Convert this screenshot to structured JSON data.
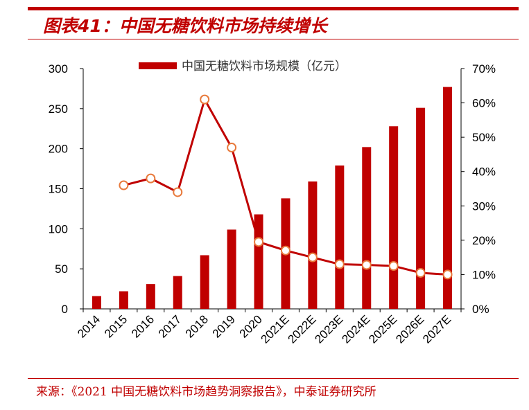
{
  "header": {
    "title": "图表41：中国无糖饮料市场持续增长"
  },
  "footer": {
    "source": "来源：《2021 中国无糖饮料市场趋势洞察报告》，中泰证券研究所"
  },
  "colors": {
    "accent": "#c00000",
    "marker_edge": "#e87a3c",
    "marker_fill": "#ffffff"
  },
  "chart_data": {
    "type": "bar",
    "categories": [
      "2014",
      "2015",
      "2016",
      "2017",
      "2018",
      "2019",
      "2020",
      "2021E",
      "2022E",
      "2023E",
      "2024E",
      "2025E",
      "2026E",
      "2027E"
    ],
    "series": [
      {
        "name": "中国无糖饮料市场规模（亿元）",
        "type": "bar",
        "axis": "left",
        "values": [
          16,
          22,
          31,
          41,
          67,
          99,
          118,
          138,
          159,
          179,
          202,
          228,
          251,
          277
        ]
      },
      {
        "type": "line",
        "axis": "right",
        "values": [
          null,
          0.36,
          0.38,
          0.34,
          0.61,
          0.47,
          0.195,
          0.17,
          0.15,
          0.13,
          0.128,
          0.125,
          0.105,
          0.1
        ]
      }
    ],
    "left_axis": {
      "ylim": [
        0,
        300
      ],
      "ticks": [
        "0",
        "50",
        "100",
        "150",
        "200",
        "250",
        "300"
      ]
    },
    "right_axis": {
      "ylim": [
        0,
        0.7
      ],
      "ticks": [
        "0%",
        "10%",
        "20%",
        "30%",
        "40%",
        "50%",
        "60%",
        "70%"
      ]
    },
    "legend": {
      "position": "top-center"
    },
    "grid": false
  }
}
